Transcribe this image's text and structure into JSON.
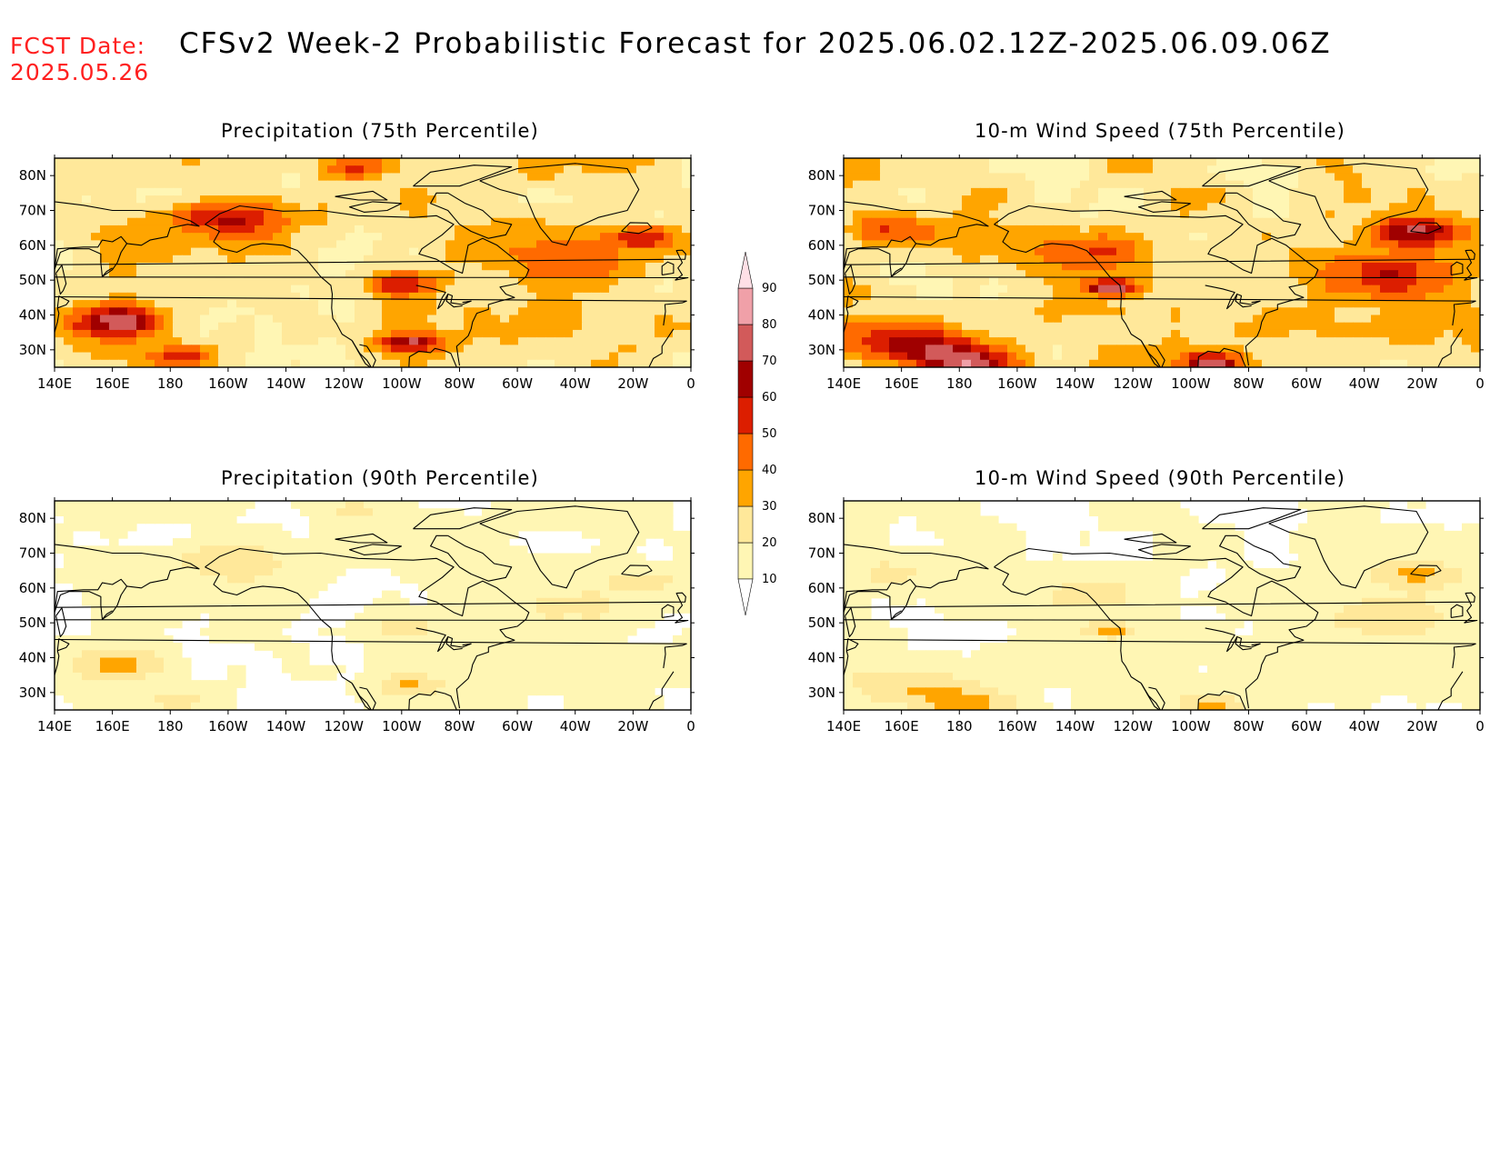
{
  "header": {
    "fcst_label": "FCST Date:",
    "fcst_date": "2025.05.26",
    "title": "CFSv2 Week-2 Probabilistic Forecast for 2025.06.02.12Z-2025.06.09.06Z"
  },
  "colors": {
    "title_text": "#ff2020",
    "levels": [
      "#fff6b4",
      "#ffe89a",
      "#ffa500",
      "#ff6a00",
      "#dc1e00",
      "#a00000",
      "#d25a5a",
      "#f0a0a8",
      "#ffe0e6"
    ]
  },
  "panels": [
    {
      "title": "Precipitation (75th Percentile)",
      "intensity": 1.0,
      "focus": "precip"
    },
    {
      "title": "10-m Wind Speed (75th Percentile)",
      "intensity": 1.0,
      "focus": "wind"
    },
    {
      "title": "Precipitation (90th Percentile)",
      "intensity": 0.45,
      "focus": "precip"
    },
    {
      "title": "10-m Wind Speed (90th Percentile)",
      "intensity": 0.45,
      "focus": "wind"
    }
  ],
  "axes": {
    "lon_labels": [
      "140E",
      "160E",
      "180",
      "160W",
      "140W",
      "120W",
      "100W",
      "80W",
      "60W",
      "40W",
      "20W",
      "0"
    ],
    "lat_labels": [
      "80N",
      "70N",
      "60N",
      "50N",
      "40N",
      "30N"
    ]
  },
  "colorbar": {
    "labels": [
      "10",
      "20",
      "30",
      "40",
      "50",
      "60",
      "70",
      "80",
      "90"
    ]
  }
}
